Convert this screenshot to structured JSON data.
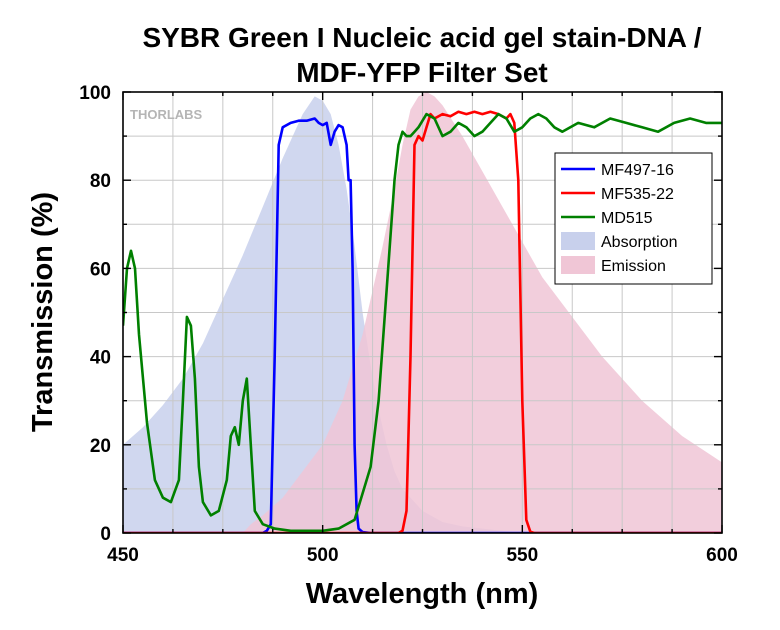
{
  "chart_data": {
    "type": "line",
    "title": "SYBR Green I Nucleic acid gel stain-DNA /",
    "subtitle": "MDF-YFP Filter Set",
    "xlabel": "Wavelength (nm)",
    "ylabel": "Transmission (%)",
    "xlim": [
      450,
      600
    ],
    "ylim": [
      0,
      100
    ],
    "xticks": [
      450,
      500,
      550,
      600
    ],
    "yticks": [
      0,
      20,
      40,
      60,
      80,
      100
    ],
    "grid": true,
    "legend_position": "right",
    "watermark": "THORLABS",
    "series": [
      {
        "name": "MF497-16",
        "kind": "line",
        "color": "#0000ff",
        "x": [
          450,
          485,
          486,
          487,
          488,
          489,
          490,
          492,
          494,
          496,
          498,
          499,
          500,
          501,
          502,
          503,
          504,
          505,
          506,
          506.5,
          507,
          507.5,
          508,
          508.5,
          509,
          510,
          512,
          600
        ],
        "y": [
          0,
          0,
          0.5,
          2,
          40,
          88,
          92,
          93,
          93.5,
          93.5,
          94,
          93,
          92.5,
          93,
          88,
          91,
          92.5,
          92,
          88,
          80,
          80,
          60,
          20,
          5,
          1,
          0.2,
          0,
          0
        ]
      },
      {
        "name": "MF535-22",
        "kind": "line",
        "color": "#ff0000",
        "x": [
          450,
          519,
          520,
          521,
          522,
          523,
          524,
          525,
          526,
          527,
          528,
          530,
          532,
          534,
          536,
          538,
          540,
          542,
          544,
          546,
          547,
          548,
          549,
          550,
          551,
          552,
          553,
          600
        ],
        "y": [
          0,
          0,
          0.5,
          5,
          40,
          88,
          90,
          89,
          92,
          95,
          94,
          95,
          94.5,
          95.5,
          95,
          95.5,
          95,
          95.5,
          95,
          94,
          95,
          93,
          80,
          30,
          3,
          0.3,
          0,
          0
        ]
      },
      {
        "name": "MD515",
        "kind": "line",
        "color": "#008000",
        "x": [
          450,
          451,
          452,
          453,
          454,
          456,
          458,
          460,
          462,
          464,
          465,
          466,
          467,
          468,
          469,
          470,
          472,
          474,
          476,
          477,
          478,
          479,
          480,
          481,
          482,
          483,
          485,
          488,
          492,
          496,
          500,
          504,
          508,
          512,
          514,
          516,
          518,
          519,
          520,
          521,
          522,
          523,
          524,
          526,
          528,
          530,
          532,
          534,
          536,
          538,
          540,
          542,
          544,
          546,
          548,
          550,
          552,
          554,
          556,
          558,
          560,
          564,
          568,
          572,
          576,
          580,
          584,
          588,
          592,
          596,
          600
        ],
        "y": [
          47,
          60,
          64,
          60,
          45,
          25,
          12,
          8,
          7,
          12,
          30,
          49,
          47,
          35,
          15,
          7,
          4,
          5,
          12,
          22,
          24,
          20,
          30,
          35,
          20,
          5,
          2,
          1,
          0.5,
          0.5,
          0.5,
          1,
          3,
          15,
          30,
          55,
          80,
          88,
          91,
          90,
          90,
          91,
          92,
          95,
          94,
          90,
          91,
          93,
          92,
          90,
          91,
          93,
          95,
          94,
          91,
          92,
          94,
          95,
          94,
          92,
          91,
          93,
          92,
          94,
          93,
          92,
          91,
          93,
          94,
          93,
          93
        ]
      },
      {
        "name": "Absorption",
        "kind": "area",
        "color": "#c8d0ec",
        "x": [
          450,
          455,
          460,
          465,
          470,
          475,
          480,
          485,
          490,
          495,
          498,
          500,
          502,
          504,
          506,
          508,
          510,
          512,
          514,
          516,
          518,
          520,
          525,
          530,
          535,
          540,
          545,
          550,
          600
        ],
        "y": [
          20,
          24,
          29,
          35,
          43,
          53,
          63,
          74,
          85,
          95,
          99,
          98,
          95,
          88,
          78,
          65,
          50,
          38,
          28,
          20,
          14,
          10,
          5,
          2.5,
          1.5,
          1,
          0.5,
          0,
          0
        ]
      },
      {
        "name": "Emission",
        "kind": "area",
        "color": "#f0c6d6",
        "x": [
          450,
          480,
          482,
          485,
          490,
          495,
          500,
          505,
          510,
          515,
          518,
          520,
          522,
          524,
          526,
          528,
          530,
          535,
          540,
          545,
          550,
          555,
          560,
          570,
          580,
          590,
          600
        ],
        "y": [
          0,
          0,
          2,
          4,
          8,
          14,
          20,
          30,
          45,
          65,
          78,
          88,
          96,
          99,
          100,
          99,
          97,
          90,
          82,
          74,
          66,
          58,
          52,
          40,
          30,
          22,
          16
        ]
      }
    ]
  }
}
